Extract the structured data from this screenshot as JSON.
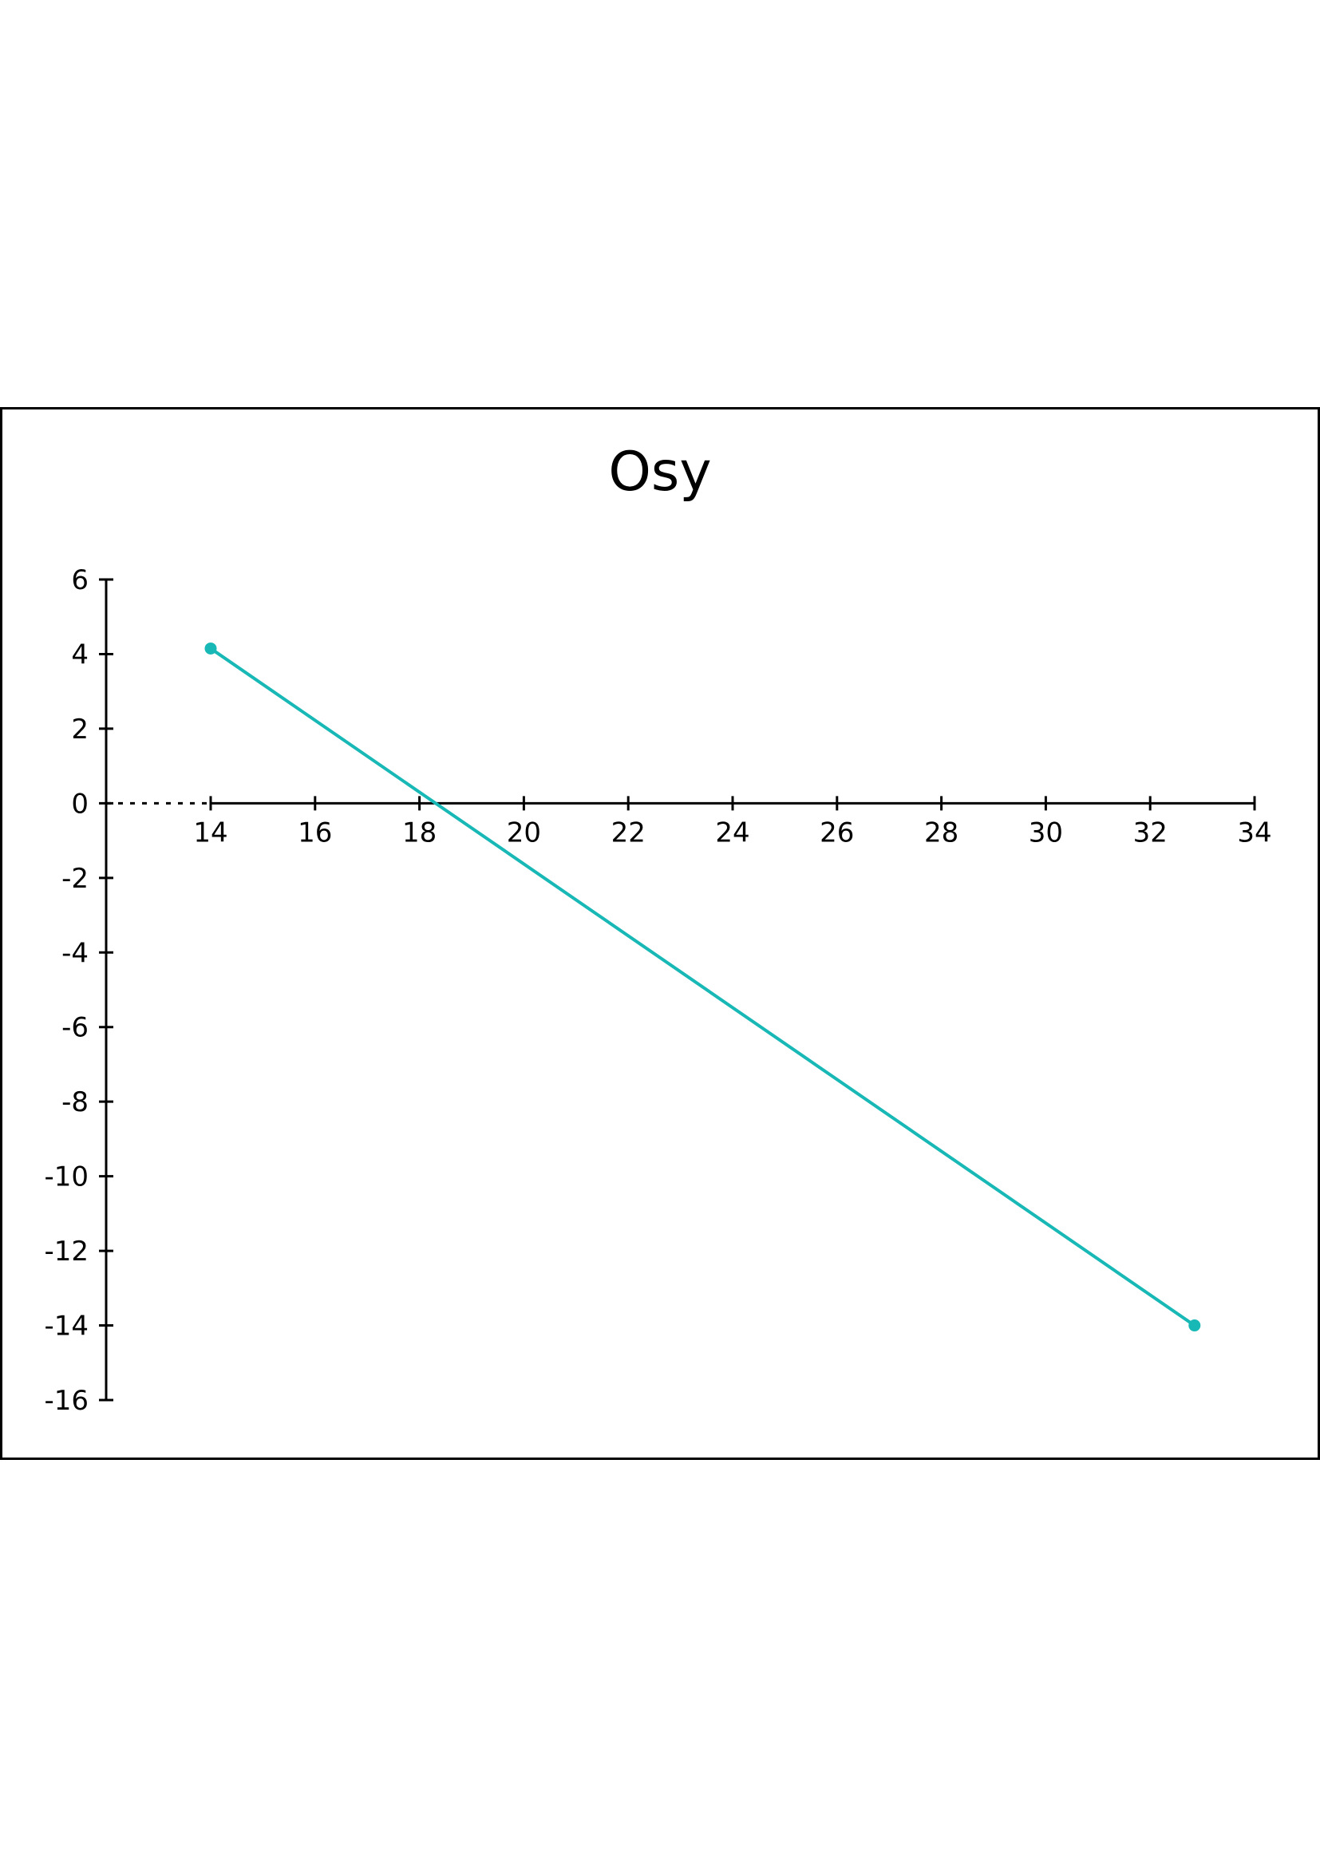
{
  "chart_data": {
    "type": "line",
    "title": "Osy",
    "xlabel": "",
    "ylabel": "",
    "xlim": [
      14,
      34
    ],
    "ylim": [
      -16,
      6
    ],
    "x_ticks": [
      14,
      16,
      18,
      20,
      22,
      24,
      26,
      28,
      30,
      32,
      34
    ],
    "y_ticks": [
      6,
      4,
      2,
      0,
      -2,
      -4,
      -6,
      -8,
      -10,
      -12,
      -14,
      -16
    ],
    "grid": false,
    "legend": "none",
    "series": [
      {
        "color": "#17b8b5",
        "points": [
          {
            "x": 14,
            "y": 4.15
          },
          {
            "x": 32.85,
            "y": -14
          }
        ]
      }
    ],
    "colors": {
      "axis": "#000000",
      "frame": "#000000",
      "series": "#17b8b5"
    }
  }
}
